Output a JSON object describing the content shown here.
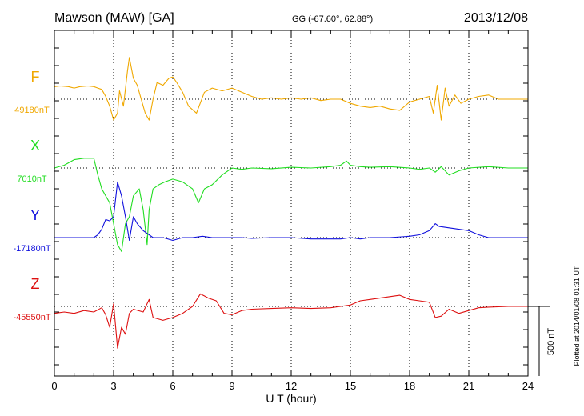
{
  "header": {
    "station": "Mawson (MAW)  [GA]",
    "coords": "GG (-67.60°,  62.88°)",
    "date": "2013/12/08"
  },
  "footer": {
    "plotted": "Plotted at 2014/01/08 01:31  UT"
  },
  "chart_data": {
    "type": "line",
    "xlabel": "U T (hour)",
    "xlim": [
      0,
      24
    ],
    "xticks": [
      0,
      3,
      6,
      9,
      12,
      15,
      18,
      21,
      24
    ],
    "scale_bar": {
      "label": "500 nT",
      "value": 500
    },
    "series": [
      {
        "name": "F",
        "baseline_label": "49180nT",
        "color": "#f0a800",
        "points": [
          [
            0,
            90
          ],
          [
            0.3,
            95
          ],
          [
            0.7,
            90
          ],
          [
            1.0,
            80
          ],
          [
            1.3,
            90
          ],
          [
            1.7,
            95
          ],
          [
            2.0,
            90
          ],
          [
            2.2,
            80
          ],
          [
            2.4,
            70
          ],
          [
            2.6,
            20
          ],
          [
            2.8,
            -50
          ],
          [
            3.0,
            -150
          ],
          [
            3.2,
            -100
          ],
          [
            3.3,
            60
          ],
          [
            3.5,
            -50
          ],
          [
            3.7,
            200
          ],
          [
            3.8,
            300
          ],
          [
            4.0,
            150
          ],
          [
            4.2,
            100
          ],
          [
            4.4,
            0
          ],
          [
            4.6,
            -100
          ],
          [
            4.8,
            -150
          ],
          [
            5.0,
            0
          ],
          [
            5.2,
            120
          ],
          [
            5.5,
            100
          ],
          [
            5.8,
            150
          ],
          [
            6.0,
            160
          ],
          [
            6.2,
            120
          ],
          [
            6.5,
            50
          ],
          [
            6.8,
            -50
          ],
          [
            7.2,
            -100
          ],
          [
            7.6,
            50
          ],
          [
            8.0,
            80
          ],
          [
            8.5,
            60
          ],
          [
            9.0,
            80
          ],
          [
            9.5,
            50
          ],
          [
            10.0,
            20
          ],
          [
            10.5,
            0
          ],
          [
            11.0,
            10
          ],
          [
            11.5,
            0
          ],
          [
            12.0,
            10
          ],
          [
            12.5,
            0
          ],
          [
            13.0,
            10
          ],
          [
            13.5,
            -10
          ],
          [
            14.0,
            0
          ],
          [
            14.5,
            0
          ],
          [
            15.0,
            -30
          ],
          [
            15.5,
            -50
          ],
          [
            16.0,
            -60
          ],
          [
            16.5,
            -50
          ],
          [
            17.0,
            -70
          ],
          [
            17.5,
            -80
          ],
          [
            18.0,
            -20
          ],
          [
            18.5,
            0
          ],
          [
            19.0,
            20
          ],
          [
            19.2,
            -100
          ],
          [
            19.4,
            100
          ],
          [
            19.6,
            -150
          ],
          [
            19.8,
            80
          ],
          [
            20.0,
            -50
          ],
          [
            20.3,
            30
          ],
          [
            20.6,
            -30
          ],
          [
            21.0,
            0
          ],
          [
            21.5,
            20
          ],
          [
            22.0,
            30
          ],
          [
            22.5,
            0
          ],
          [
            23.0,
            0
          ],
          [
            23.5,
            0
          ],
          [
            24.0,
            0
          ]
        ]
      },
      {
        "name": "X",
        "baseline_label": "7010nT",
        "color": "#22dd22",
        "points": [
          [
            0,
            0
          ],
          [
            0.5,
            20
          ],
          [
            1.0,
            60
          ],
          [
            1.5,
            70
          ],
          [
            2.0,
            70
          ],
          [
            2.2,
            -50
          ],
          [
            2.4,
            -150
          ],
          [
            2.6,
            -200
          ],
          [
            2.8,
            -250
          ],
          [
            3.0,
            -400
          ],
          [
            3.2,
            -550
          ],
          [
            3.4,
            -600
          ],
          [
            3.6,
            -400
          ],
          [
            3.8,
            -350
          ],
          [
            4.0,
            -200
          ],
          [
            4.3,
            -150
          ],
          [
            4.5,
            -300
          ],
          [
            4.7,
            -550
          ],
          [
            4.8,
            -300
          ],
          [
            5.0,
            -150
          ],
          [
            5.3,
            -120
          ],
          [
            5.6,
            -100
          ],
          [
            6.0,
            -80
          ],
          [
            6.5,
            -100
          ],
          [
            7.0,
            -150
          ],
          [
            7.3,
            -250
          ],
          [
            7.6,
            -150
          ],
          [
            8.0,
            -120
          ],
          [
            8.5,
            -50
          ],
          [
            9.0,
            0
          ],
          [
            9.5,
            -10
          ],
          [
            10.0,
            0
          ],
          [
            11.0,
            -5
          ],
          [
            12.0,
            5
          ],
          [
            13.0,
            0
          ],
          [
            14.0,
            10
          ],
          [
            14.5,
            20
          ],
          [
            14.8,
            50
          ],
          [
            15.0,
            20
          ],
          [
            15.5,
            10
          ],
          [
            16.0,
            5
          ],
          [
            17.0,
            10
          ],
          [
            18.0,
            0
          ],
          [
            18.5,
            -10
          ],
          [
            19.0,
            0
          ],
          [
            19.3,
            -30
          ],
          [
            19.6,
            10
          ],
          [
            20.0,
            -50
          ],
          [
            20.5,
            -20
          ],
          [
            21.0,
            0
          ],
          [
            22.0,
            10
          ],
          [
            23.0,
            0
          ],
          [
            24.0,
            0
          ]
        ]
      },
      {
        "name": "Y",
        "baseline_label": "-17180nT",
        "color": "#1010dd",
        "points": [
          [
            0,
            0
          ],
          [
            0.5,
            0
          ],
          [
            1.0,
            0
          ],
          [
            1.5,
            0
          ],
          [
            2.0,
            0
          ],
          [
            2.2,
            20
          ],
          [
            2.4,
            60
          ],
          [
            2.6,
            130
          ],
          [
            2.8,
            120
          ],
          [
            3.0,
            150
          ],
          [
            3.2,
            400
          ],
          [
            3.4,
            300
          ],
          [
            3.6,
            150
          ],
          [
            3.8,
            -20
          ],
          [
            4.0,
            150
          ],
          [
            4.2,
            100
          ],
          [
            4.5,
            50
          ],
          [
            4.8,
            20
          ],
          [
            5.0,
            0
          ],
          [
            5.5,
            0
          ],
          [
            6.0,
            -20
          ],
          [
            6.5,
            0
          ],
          [
            7.0,
            0
          ],
          [
            7.5,
            10
          ],
          [
            8.0,
            0
          ],
          [
            8.5,
            0
          ],
          [
            9.0,
            0
          ],
          [
            9.5,
            0
          ],
          [
            10.0,
            -5
          ],
          [
            11.0,
            0
          ],
          [
            12.0,
            0
          ],
          [
            13.0,
            -10
          ],
          [
            14.0,
            -10
          ],
          [
            14.5,
            -10
          ],
          [
            15.0,
            0
          ],
          [
            15.5,
            -10
          ],
          [
            16.0,
            0
          ],
          [
            17.0,
            0
          ],
          [
            18.0,
            10
          ],
          [
            18.5,
            20
          ],
          [
            19.0,
            50
          ],
          [
            19.3,
            100
          ],
          [
            19.5,
            80
          ],
          [
            20.0,
            70
          ],
          [
            20.5,
            60
          ],
          [
            21.0,
            50
          ],
          [
            21.5,
            20
          ],
          [
            22.0,
            0
          ],
          [
            22.5,
            0
          ],
          [
            23.0,
            0
          ],
          [
            24.0,
            0
          ]
        ]
      },
      {
        "name": "Z",
        "baseline_label": "-45550nT",
        "color": "#dd1010",
        "points": [
          [
            0,
            -50
          ],
          [
            0.5,
            -40
          ],
          [
            1.0,
            -50
          ],
          [
            1.5,
            -30
          ],
          [
            2.0,
            -40
          ],
          [
            2.4,
            -10
          ],
          [
            2.6,
            -60
          ],
          [
            2.8,
            -150
          ],
          [
            3.0,
            20
          ],
          [
            3.2,
            -300
          ],
          [
            3.4,
            -150
          ],
          [
            3.6,
            -200
          ],
          [
            3.8,
            -50
          ],
          [
            4.0,
            -20
          ],
          [
            4.5,
            -40
          ],
          [
            4.8,
            50
          ],
          [
            5.0,
            -80
          ],
          [
            5.5,
            -100
          ],
          [
            6.0,
            -80
          ],
          [
            6.5,
            -50
          ],
          [
            7.0,
            0
          ],
          [
            7.4,
            90
          ],
          [
            7.8,
            60
          ],
          [
            8.2,
            40
          ],
          [
            8.6,
            -50
          ],
          [
            9.0,
            -60
          ],
          [
            9.5,
            -30
          ],
          [
            10.0,
            -20
          ],
          [
            11.0,
            -15
          ],
          [
            12.0,
            -10
          ],
          [
            13.0,
            -15
          ],
          [
            14.0,
            -10
          ],
          [
            14.5,
            0
          ],
          [
            15.0,
            10
          ],
          [
            15.5,
            40
          ],
          [
            16.0,
            50
          ],
          [
            17.0,
            70
          ],
          [
            17.5,
            80
          ],
          [
            18.0,
            50
          ],
          [
            18.5,
            40
          ],
          [
            19.0,
            30
          ],
          [
            19.3,
            -80
          ],
          [
            19.6,
            -70
          ],
          [
            20.0,
            -20
          ],
          [
            20.5,
            -50
          ],
          [
            21.0,
            -30
          ],
          [
            21.5,
            -10
          ],
          [
            22.0,
            -5
          ],
          [
            23.0,
            0
          ],
          [
            24.0,
            0
          ]
        ]
      }
    ]
  }
}
